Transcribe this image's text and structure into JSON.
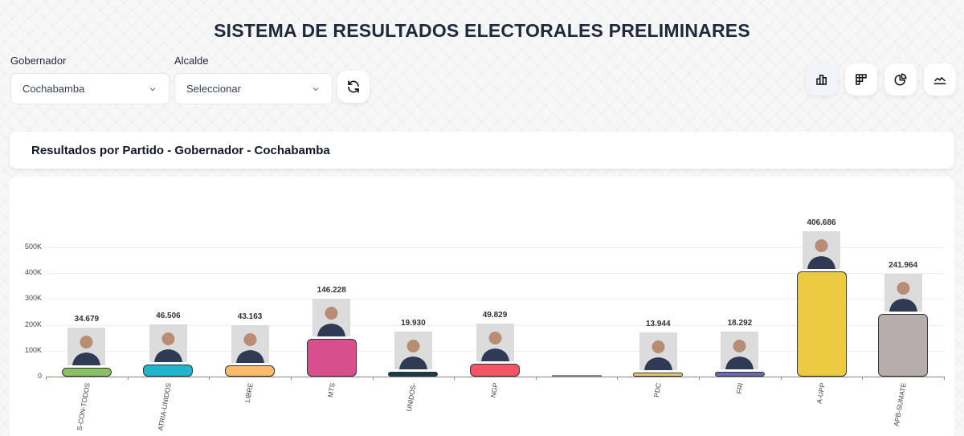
{
  "header": {
    "title": "SISTEMA DE RESULTADOS ELECTORALES PRELIMINARES"
  },
  "filters": {
    "gobernador_label": "Gobernador",
    "gobernador_value": "Cochabamba",
    "alcalde_label": "Alcalde",
    "alcalde_value": "Seleccionar",
    "refresh_icon": "refresh-icon"
  },
  "view_toggles": [
    {
      "icon": "bar-chart-icon",
      "active": true
    },
    {
      "icon": "table-grid-icon",
      "active": false
    },
    {
      "icon": "pie-chart-icon",
      "active": false
    },
    {
      "icon": "line-chart-icon",
      "active": false
    }
  ],
  "card": {
    "title": "Resultados por Partido - Gobernador - Cochabamba"
  },
  "chart_data": {
    "type": "bar",
    "title": "Resultados por Partido - Gobernador - Cochabamba",
    "xlabel": "",
    "ylabel": "",
    "ylim": [
      0,
      500000
    ],
    "yticks": [
      "0",
      "100K",
      "200K",
      "300K",
      "400K",
      "500K"
    ],
    "grid": true,
    "legend": "none",
    "categories": [
      "S-CON-TODOS",
      "ATRIA-UNIDOS",
      "LIBRE",
      "MTS",
      "UNIDOS-",
      "NGP",
      "",
      "PDC",
      "FRI",
      "A-UPP",
      "APB-SUMATE"
    ],
    "values": [
      34679,
      46506,
      43163,
      146228,
      19930,
      49829,
      0,
      13944,
      18292,
      406686,
      241964
    ],
    "value_labels": [
      "34.679",
      "46.506",
      "43.163",
      "146.228",
      "19.930",
      "49.829",
      "",
      "13.944",
      "18.292",
      "406.686",
      "241.964"
    ],
    "colors": [
      "#8bc064",
      "#1fb5cc",
      "#fdba6a",
      "#d94f8c",
      "#173a4d",
      "#f25564",
      "#888888",
      "#e6cc6e",
      "#6b67b0",
      "#eccb42",
      "#b7aeab"
    ],
    "has_photo": [
      true,
      true,
      true,
      true,
      true,
      true,
      false,
      true,
      true,
      true,
      true
    ]
  }
}
